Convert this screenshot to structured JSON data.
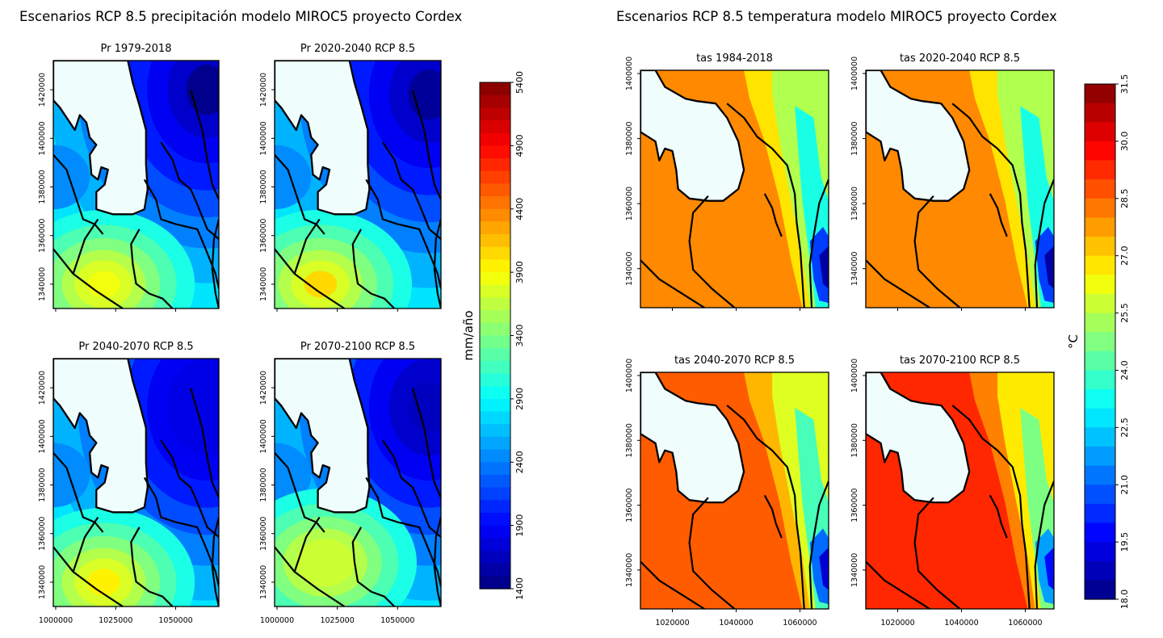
{
  "figures": {
    "precip_title": "Escenarios RCP 8.5 precipitación modelo MIROC5 proyecto Cordex",
    "temp_title": "Escenarios RCP 8.5 temperatura modelo MIROC5 proyecto Cordex"
  },
  "chart_data": [
    {
      "type": "heatmap",
      "group": "precipitation",
      "title": "Pr 1979-2018",
      "x_ticks": [
        1000000,
        1025000,
        1050000
      ],
      "y_ticks": [
        1340000,
        1360000,
        1380000,
        1400000,
        1420000
      ],
      "xlim": [
        999000,
        1068000
      ],
      "ylim": [
        1330000,
        1432000
      ],
      "hotspot": {
        "x": 1063000,
        "y": 1420000,
        "value": 1450
      },
      "coldspot": {
        "x": 1020000,
        "y": 1340000,
        "value": 3850
      },
      "colorbar": "precip"
    },
    {
      "type": "heatmap",
      "group": "precipitation",
      "title": "Pr 2020-2040 RCP 8.5",
      "x_ticks": [
        1000000,
        1025000,
        1050000
      ],
      "y_ticks": [
        1340000,
        1360000,
        1380000,
        1400000,
        1420000
      ],
      "xlim": [
        999000,
        1068000
      ],
      "ylim": [
        1330000,
        1432000
      ],
      "hotspot": {
        "x": 1063000,
        "y": 1418000,
        "value": 1500
      },
      "coldspot": {
        "x": 1018000,
        "y": 1340000,
        "value": 4050
      },
      "colorbar": "precip"
    },
    {
      "type": "heatmap",
      "group": "precipitation",
      "title": "Pr 2040-2070 RCP 8.5",
      "x_ticks": [
        1000000,
        1025000,
        1050000
      ],
      "y_ticks": [
        1340000,
        1360000,
        1380000,
        1400000,
        1420000
      ],
      "xlim": [
        999000,
        1068000
      ],
      "ylim": [
        1330000,
        1432000
      ],
      "hotspot": {
        "x": 1063000,
        "y": 1412000,
        "value": 1800
      },
      "coldspot": {
        "x": 1020000,
        "y": 1340000,
        "value": 3950
      },
      "colorbar": "precip"
    },
    {
      "type": "heatmap",
      "group": "precipitation",
      "title": "Pr 2070-2100 RCP 8.5",
      "x_ticks": [
        1000000,
        1025000,
        1050000
      ],
      "y_ticks": [
        1340000,
        1360000,
        1380000,
        1400000,
        1420000
      ],
      "xlim": [
        999000,
        1068000
      ],
      "ylim": [
        1330000,
        1432000
      ],
      "hotspot": {
        "x": 1063000,
        "y": 1412000,
        "value": 1650
      },
      "coldspot": {
        "x": 1020000,
        "y": 1348000,
        "value": 3700
      },
      "colorbar": "precip"
    },
    {
      "type": "heatmap",
      "group": "temperature",
      "title": "tas 1984-2018",
      "x_ticks": [
        1020000,
        1040000,
        1060000
      ],
      "y_ticks": [
        1340000,
        1360000,
        1380000,
        1400000
      ],
      "xlim": [
        1010000,
        1069000
      ],
      "ylim": [
        1328000,
        1401000
      ],
      "lowland_value": 28.0,
      "colorbar": "temp"
    },
    {
      "type": "heatmap",
      "group": "temperature",
      "title": "tas 2020-2040 RCP 8.5",
      "x_ticks": [
        1020000,
        1040000,
        1060000
      ],
      "y_ticks": [
        1340000,
        1360000,
        1380000,
        1400000
      ],
      "xlim": [
        1010000,
        1069000
      ],
      "ylim": [
        1328000,
        1401000
      ],
      "lowland_value": 28.0,
      "colorbar": "temp"
    },
    {
      "type": "heatmap",
      "group": "temperature",
      "title": "tas 2040-2070 RCP 8.5",
      "x_ticks": [
        1020000,
        1040000,
        1060000
      ],
      "y_ticks": [
        1340000,
        1360000,
        1380000,
        1400000
      ],
      "xlim": [
        1010000,
        1069000
      ],
      "ylim": [
        1328000,
        1401000
      ],
      "lowland_value": 28.6,
      "colorbar": "temp"
    },
    {
      "type": "heatmap",
      "group": "temperature",
      "title": "tas 2070-2100 RCP 8.5",
      "x_ticks": [
        1020000,
        1040000,
        1060000
      ],
      "y_ticks": [
        1340000,
        1360000,
        1380000,
        1400000
      ],
      "xlim": [
        1010000,
        1069000
      ],
      "ylim": [
        1328000,
        1401000
      ],
      "lowland_value": 29.3,
      "colorbar": "temp"
    }
  ],
  "colorbars": {
    "precip": {
      "label": "mm/año",
      "min": 1400,
      "max": 5400,
      "ticks": [
        1400,
        1900,
        2400,
        2900,
        3400,
        3900,
        4400,
        4900,
        5400
      ],
      "levels": 40,
      "colormap": "jet_r"
    },
    "temp": {
      "label": "°C",
      "min": 18.0,
      "max": 31.5,
      "ticks": [
        "18.0",
        "19.5",
        "21.0",
        "22.5",
        "24.0",
        "25.5",
        "27.0",
        "28.5",
        "30.0",
        "31.5"
      ],
      "levels": 27,
      "colormap": "jet"
    }
  }
}
